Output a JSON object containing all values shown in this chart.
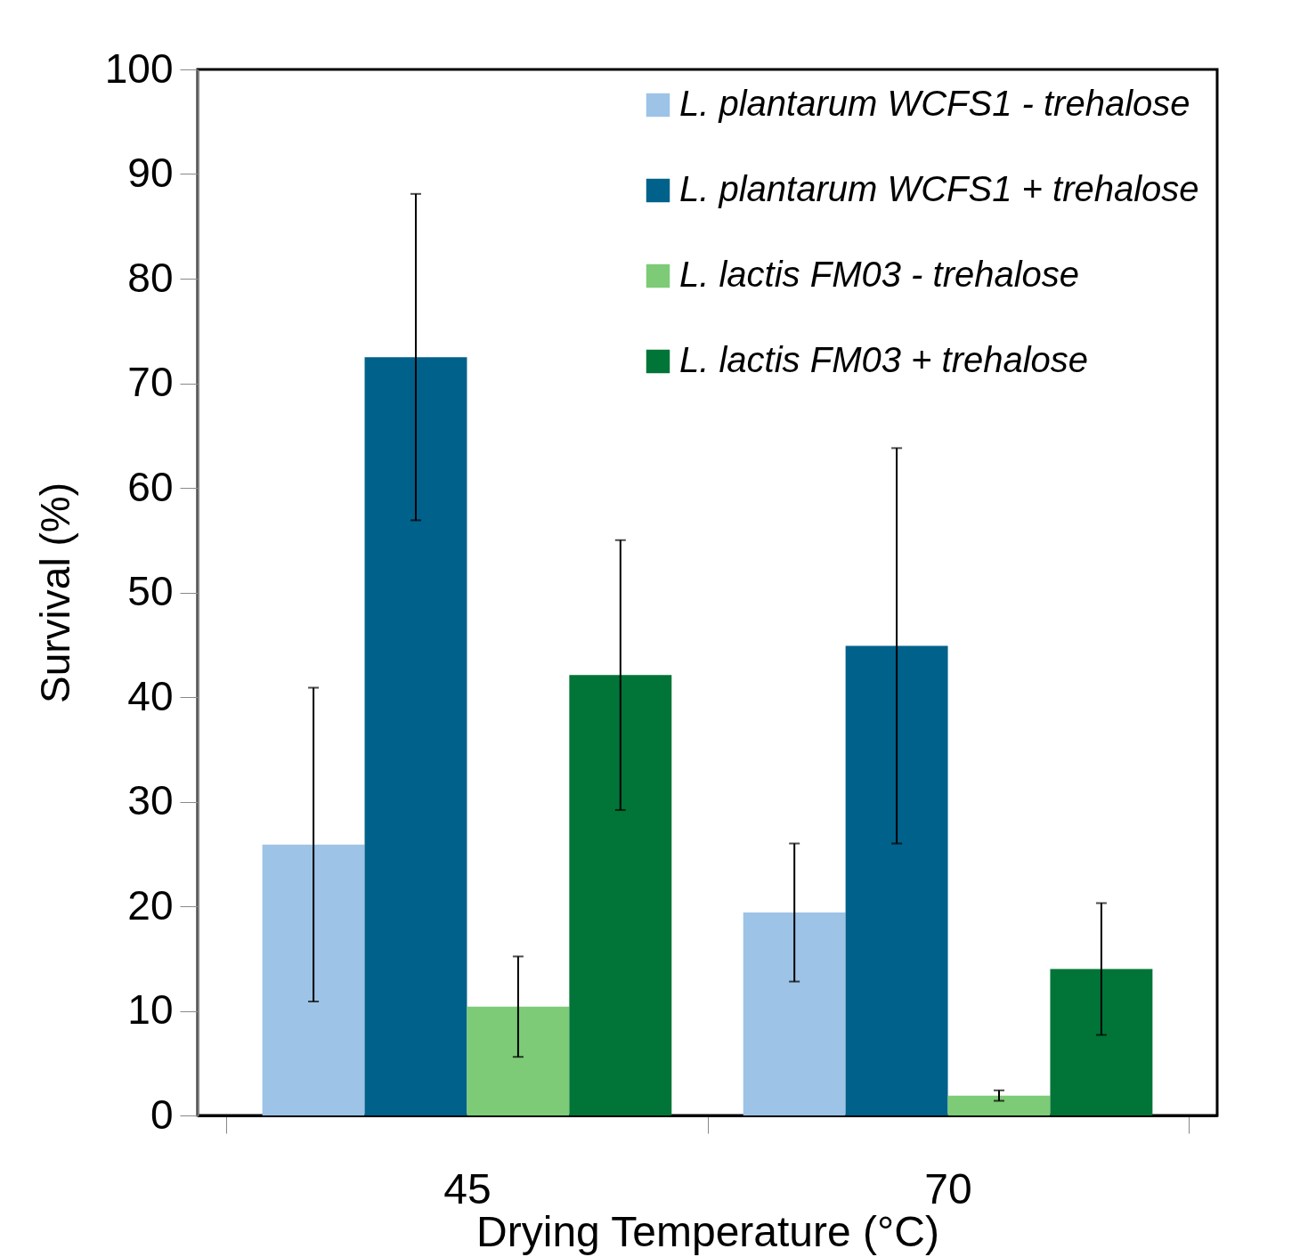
{
  "chart_data": {
    "type": "bar",
    "xlabel": "Drying Temperature (°C)",
    "ylabel": "Survival (%)",
    "categories": [
      "45",
      "70"
    ],
    "series": [
      {
        "name": "L. plantarum WCFS1 - trehalose",
        "color": "#9dc3e6",
        "values": [
          25.9,
          19.4
        ],
        "errors": [
          15.0,
          6.6
        ]
      },
      {
        "name": "L. plantarum WCFS1 + trehalose",
        "color": "#00618a",
        "values": [
          72.5,
          44.9
        ],
        "errors": [
          15.6,
          18.9
        ]
      },
      {
        "name": "L. lactis FM03  - trehalose",
        "color": "#7dcb77",
        "values": [
          10.4,
          1.9
        ],
        "errors": [
          4.8,
          0.5
        ]
      },
      {
        "name": "L. lactis FM03 + trehalose",
        "color": "#007537",
        "values": [
          42.1,
          14.0
        ],
        "errors": [
          12.9,
          6.3
        ]
      }
    ],
    "ylim": [
      0,
      100
    ],
    "yticks": [
      0,
      10,
      20,
      30,
      40,
      50,
      60,
      70,
      80,
      90,
      100
    ],
    "grid": false,
    "legend": "top right"
  }
}
